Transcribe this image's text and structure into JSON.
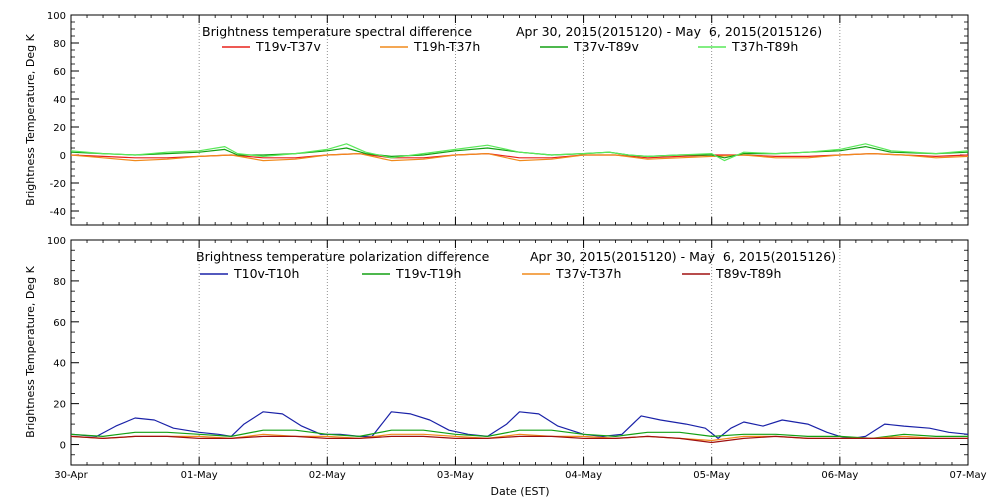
{
  "colors": {
    "red": "#e8221c",
    "orange": "#f08a1c",
    "green": "#13a013",
    "lightgreen": "#59e859",
    "blue": "#1a22a8",
    "darkred": "#a01010",
    "gridline": "#777777"
  },
  "chart_data": [
    {
      "type": "line",
      "title": "Brightness temperature spectral difference",
      "date_range": "Apr 30, 2015(2015120) - May  6, 2015(2015126)",
      "ylabel": "Brightness Temperature, Deg K",
      "xlabel": "",
      "ylim": [
        -50,
        100
      ],
      "yticks": [
        -40,
        -20,
        0,
        20,
        40,
        60,
        80,
        100
      ],
      "xlim": [
        0,
        7
      ],
      "xticks": [
        0,
        1,
        2,
        3,
        4,
        5,
        6,
        7
      ],
      "x_tick_labels": [
        "30-Apr",
        "01-May",
        "02-May",
        "03-May",
        "04-May",
        "05-May",
        "06-May",
        "07-May"
      ],
      "grid": "dotted-vertical",
      "legend": "top",
      "series": [
        {
          "name": "T19v-T37v",
          "color": "red",
          "x": [
            0,
            0.25,
            0.5,
            0.75,
            1.0,
            1.25,
            1.5,
            1.75,
            2.0,
            2.25,
            2.5,
            2.75,
            3.0,
            3.25,
            3.5,
            3.75,
            4.0,
            4.25,
            4.5,
            4.75,
            5.0,
            5.25,
            5.5,
            5.75,
            6.0,
            6.25,
            6.5,
            6.75,
            7.0
          ],
          "y": [
            0,
            -1,
            -2,
            -2,
            -1,
            0,
            -2,
            -2,
            0,
            1,
            -2,
            -2,
            0,
            1,
            -2,
            -2,
            0,
            0,
            -2,
            -1,
            0,
            0,
            -1,
            -1,
            0,
            1,
            0,
            -1,
            0
          ]
        },
        {
          "name": "T19h-T37h",
          "color": "orange",
          "x": [
            0,
            0.25,
            0.5,
            0.75,
            1.0,
            1.25,
            1.5,
            1.75,
            2.0,
            2.25,
            2.5,
            2.75,
            3.0,
            3.25,
            3.5,
            3.75,
            4.0,
            4.25,
            4.5,
            4.75,
            5.0,
            5.25,
            5.5,
            5.75,
            6.0,
            6.25,
            6.5,
            6.75,
            7.0
          ],
          "y": [
            0,
            -2,
            -4,
            -3,
            -1,
            0,
            -4,
            -3,
            0,
            1,
            -4,
            -3,
            0,
            1,
            -4,
            -3,
            0,
            0,
            -3,
            -2,
            -1,
            0,
            -2,
            -2,
            0,
            1,
            0,
            -2,
            -1
          ]
        },
        {
          "name": "T37v-T89v",
          "color": "green",
          "x": [
            0,
            0.25,
            0.5,
            0.75,
            1.0,
            1.2,
            1.3,
            1.5,
            1.75,
            2.0,
            2.15,
            2.3,
            2.5,
            2.75,
            3.0,
            3.25,
            3.5,
            3.75,
            4.0,
            4.2,
            4.35,
            4.5,
            4.75,
            5.0,
            5.1,
            5.25,
            5.5,
            5.75,
            6.0,
            6.2,
            6.4,
            6.75,
            7.0
          ],
          "y": [
            2,
            1,
            0,
            1,
            2,
            4,
            0,
            0,
            1,
            3,
            5,
            1,
            -1,
            0,
            3,
            5,
            2,
            0,
            1,
            2,
            0,
            -1,
            0,
            0,
            -2,
            1,
            1,
            2,
            3,
            6,
            2,
            1,
            2
          ]
        },
        {
          "name": "T37h-T89h",
          "color": "lightgreen",
          "x": [
            0,
            0.25,
            0.5,
            0.75,
            1.0,
            1.2,
            1.3,
            1.5,
            1.75,
            2.0,
            2.15,
            2.3,
            2.5,
            2.75,
            3.0,
            3.25,
            3.5,
            3.75,
            4.0,
            4.2,
            4.35,
            4.5,
            4.75,
            5.0,
            5.1,
            5.25,
            5.5,
            5.75,
            6.0,
            6.2,
            6.4,
            6.75,
            7.0
          ],
          "y": [
            3,
            1,
            0,
            2,
            3,
            6,
            1,
            -1,
            1,
            4,
            8,
            2,
            -2,
            1,
            4,
            7,
            2,
            0,
            1,
            2,
            0,
            -1,
            0,
            1,
            -4,
            2,
            1,
            2,
            4,
            8,
            3,
            1,
            3
          ]
        }
      ]
    },
    {
      "type": "line",
      "title": "Brightness temperature polarization difference",
      "date_range": "Apr 30, 2015(2015120) - May  6, 2015(2015126)",
      "ylabel": "Brightness Temperature, Deg K",
      "xlabel": "Date (EST)",
      "ylim": [
        -10,
        100
      ],
      "yticks": [
        0,
        20,
        40,
        60,
        80,
        100
      ],
      "xlim": [
        0,
        7
      ],
      "xticks": [
        0,
        1,
        2,
        3,
        4,
        5,
        6,
        7
      ],
      "x_tick_labels": [
        "30-Apr",
        "01-May",
        "02-May",
        "03-May",
        "04-May",
        "05-May",
        "06-May",
        "07-May"
      ],
      "grid": "dotted-vertical",
      "legend": "top",
      "series": [
        {
          "name": "T10v-T10h",
          "color": "blue",
          "x": [
            0,
            0.2,
            0.35,
            0.5,
            0.65,
            0.8,
            1.0,
            1.15,
            1.25,
            1.35,
            1.5,
            1.65,
            1.8,
            1.95,
            2.1,
            2.25,
            2.35,
            2.5,
            2.65,
            2.8,
            2.95,
            3.1,
            3.25,
            3.4,
            3.5,
            3.65,
            3.8,
            4.0,
            4.15,
            4.3,
            4.45,
            4.6,
            4.8,
            4.95,
            5.05,
            5.15,
            5.25,
            5.4,
            5.55,
            5.75,
            5.9,
            6.0,
            6.1,
            6.2,
            6.35,
            6.5,
            6.7,
            6.85,
            7.0
          ],
          "y": [
            5,
            4,
            9,
            13,
            12,
            8,
            6,
            5,
            4,
            10,
            16,
            15,
            9,
            5,
            5,
            4,
            4,
            16,
            15,
            12,
            7,
            5,
            4,
            10,
            16,
            15,
            9,
            5,
            4,
            5,
            14,
            12,
            10,
            8,
            3,
            8,
            11,
            9,
            12,
            10,
            6,
            4,
            3,
            4,
            10,
            9,
            8,
            6,
            5
          ]
        },
        {
          "name": "T19v-T19h",
          "color": "green",
          "x": [
            0,
            0.25,
            0.5,
            0.75,
            1.0,
            1.25,
            1.5,
            1.75,
            2.0,
            2.25,
            2.5,
            2.75,
            3.0,
            3.25,
            3.5,
            3.75,
            4.0,
            4.25,
            4.5,
            4.75,
            5.0,
            5.25,
            5.5,
            5.75,
            6.0,
            6.25,
            6.5,
            6.75,
            7.0
          ],
          "y": [
            5,
            4,
            6,
            6,
            5,
            4,
            7,
            7,
            5,
            4,
            7,
            7,
            5,
            4,
            7,
            7,
            5,
            4,
            6,
            6,
            4,
            5,
            5,
            4,
            4,
            3,
            5,
            4,
            4
          ]
        },
        {
          "name": "T37v-T37h",
          "color": "orange",
          "x": [
            0,
            0.25,
            0.5,
            0.75,
            1.0,
            1.25,
            1.5,
            1.75,
            2.0,
            2.25,
            2.5,
            2.75,
            3.0,
            3.25,
            3.5,
            3.75,
            4.0,
            4.25,
            4.5,
            4.75,
            5.0,
            5.25,
            5.5,
            5.75,
            6.0,
            6.25,
            6.5,
            6.75,
            7.0
          ],
          "y": [
            4,
            3,
            4,
            4,
            4,
            3,
            5,
            4,
            4,
            3,
            5,
            5,
            4,
            3,
            5,
            4,
            4,
            3,
            4,
            3,
            2,
            4,
            4,
            3,
            3,
            3,
            4,
            3,
            3
          ]
        },
        {
          "name": "T89v-T89h",
          "color": "darkred",
          "x": [
            0,
            0.25,
            0.5,
            0.75,
            1.0,
            1.25,
            1.5,
            1.75,
            2.0,
            2.25,
            2.5,
            2.75,
            3.0,
            3.25,
            3.5,
            3.75,
            4.0,
            4.25,
            4.5,
            4.75,
            5.0,
            5.25,
            5.5,
            5.75,
            6.0,
            6.25,
            6.5,
            6.75,
            7.0
          ],
          "y": [
            4,
            3,
            4,
            4,
            3,
            3,
            4,
            4,
            3,
            3,
            4,
            4,
            3,
            3,
            4,
            4,
            3,
            3,
            4,
            3,
            1,
            3,
            4,
            3,
            3,
            3,
            3,
            3,
            3
          ]
        }
      ]
    }
  ]
}
